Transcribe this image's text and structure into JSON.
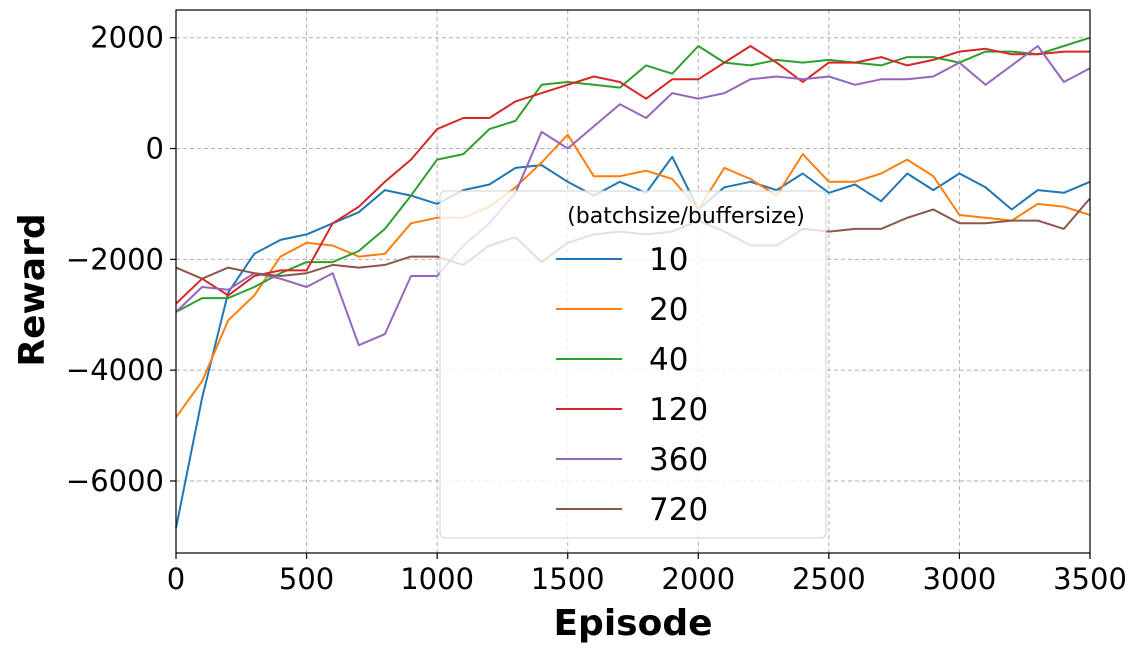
{
  "chart_data": {
    "type": "line",
    "title": "",
    "xlabel": "Episode",
    "ylabel": "Reward",
    "xlim": [
      0,
      3500
    ],
    "ylim": [
      -7300,
      2500
    ],
    "xticks": [
      0,
      500,
      1000,
      1500,
      2000,
      2500,
      3000,
      3500
    ],
    "yticks": [
      -6000,
      -4000,
      -2000,
      0,
      2000
    ],
    "xtick_labels": [
      "0",
      "500",
      "1000",
      "1500",
      "2000",
      "2500",
      "3000",
      "3500"
    ],
    "ytick_labels": [
      "−6000",
      "−4000",
      "−2000",
      "0",
      "2000"
    ],
    "grid": true,
    "legend": {
      "title": "(batchsize/buffersize)",
      "placement": "center"
    },
    "x": [
      0,
      100,
      200,
      300,
      400,
      500,
      600,
      700,
      800,
      900,
      1000,
      1100,
      1200,
      1300,
      1400,
      1500,
      1600,
      1700,
      1800,
      1900,
      2000,
      2100,
      2200,
      2300,
      2400,
      2500,
      2600,
      2700,
      2800,
      2900,
      3000,
      3100,
      3200,
      3300,
      3400,
      3500
    ],
    "series": [
      {
        "name": "10",
        "color": "#1f77b4",
        "values": [
          -6850,
          -4500,
          -2600,
          -1900,
          -1650,
          -1550,
          -1350,
          -1150,
          -750,
          -850,
          -1000,
          -750,
          -650,
          -350,
          -300,
          -600,
          -850,
          -600,
          -800,
          -150,
          -1100,
          -700,
          -600,
          -750,
          -450,
          -800,
          -650,
          -950,
          -450,
          -750,
          -450,
          -700,
          -1100,
          -750,
          -800,
          -600
        ]
      },
      {
        "name": "20",
        "color": "#ff7f0e",
        "values": [
          -4850,
          -4200,
          -3100,
          -2650,
          -1950,
          -1700,
          -1750,
          -1950,
          -1900,
          -1350,
          -1250,
          -1250,
          -1050,
          -700,
          -250,
          250,
          -500,
          -500,
          -400,
          -550,
          -1100,
          -350,
          -550,
          -850,
          -100,
          -600,
          -600,
          -450,
          -200,
          -500,
          -1200,
          -1250,
          -1300,
          -1000,
          -1050,
          -1200
        ]
      },
      {
        "name": "40",
        "color": "#2ca02c",
        "values": [
          -2950,
          -2700,
          -2700,
          -2500,
          -2250,
          -2050,
          -2050,
          -1850,
          -1450,
          -850,
          -200,
          -100,
          350,
          500,
          1150,
          1200,
          1150,
          1100,
          1500,
          1350,
          1850,
          1550,
          1500,
          1600,
          1550,
          1600,
          1550,
          1500,
          1650,
          1650,
          1550,
          1750,
          1750,
          1700,
          1850,
          2000
        ]
      },
      {
        "name": "120",
        "color": "#d62728",
        "values": [
          -2800,
          -2350,
          -2650,
          -2300,
          -2200,
          -2200,
          -1350,
          -1050,
          -600,
          -200,
          350,
          550,
          550,
          850,
          1000,
          1150,
          1300,
          1200,
          900,
          1250,
          1250,
          1550,
          1850,
          1550,
          1200,
          1550,
          1550,
          1650,
          1500,
          1600,
          1750,
          1800,
          1700,
          1700,
          1750,
          1750
        ]
      },
      {
        "name": "360",
        "color": "#9467bd",
        "values": [
          -2950,
          -2500,
          -2550,
          -2250,
          -2350,
          -2500,
          -2250,
          -3550,
          -3350,
          -2300,
          -2300,
          -1750,
          -1350,
          -800,
          300,
          0,
          400,
          800,
          550,
          1000,
          900,
          1000,
          1250,
          1300,
          1250,
          1300,
          1150,
          1250,
          1250,
          1300,
          1550,
          1150,
          1500,
          1850,
          1200,
          1450
        ]
      },
      {
        "name": "720",
        "color": "#8c564b",
        "values": [
          -2150,
          -2350,
          -2150,
          -2250,
          -2300,
          -2250,
          -2100,
          -2150,
          -2100,
          -1950,
          -1950,
          -2100,
          -1750,
          -1600,
          -2050,
          -1700,
          -1550,
          -1500,
          -1550,
          -1500,
          -1300,
          -1500,
          -1750,
          -1750,
          -1450,
          -1500,
          -1450,
          -1450,
          -1250,
          -1100,
          -1350,
          -1350,
          -1300,
          -1300,
          -1450,
          -900
        ]
      }
    ]
  }
}
